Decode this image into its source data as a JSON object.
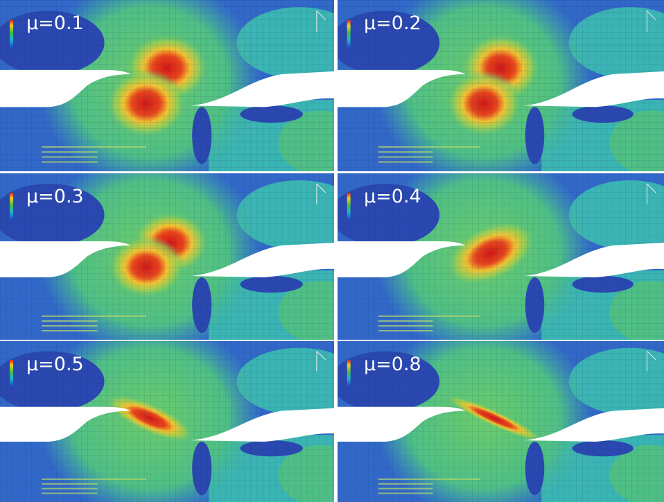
{
  "panels": [
    {
      "label": "μ=0.1"
    },
    {
      "label": "μ=0.2"
    },
    {
      "label": "μ=0.3"
    },
    {
      "label": "μ=0.4"
    },
    {
      "label": "μ=0.5"
    },
    {
      "label": "μ=0.8"
    }
  ]
}
